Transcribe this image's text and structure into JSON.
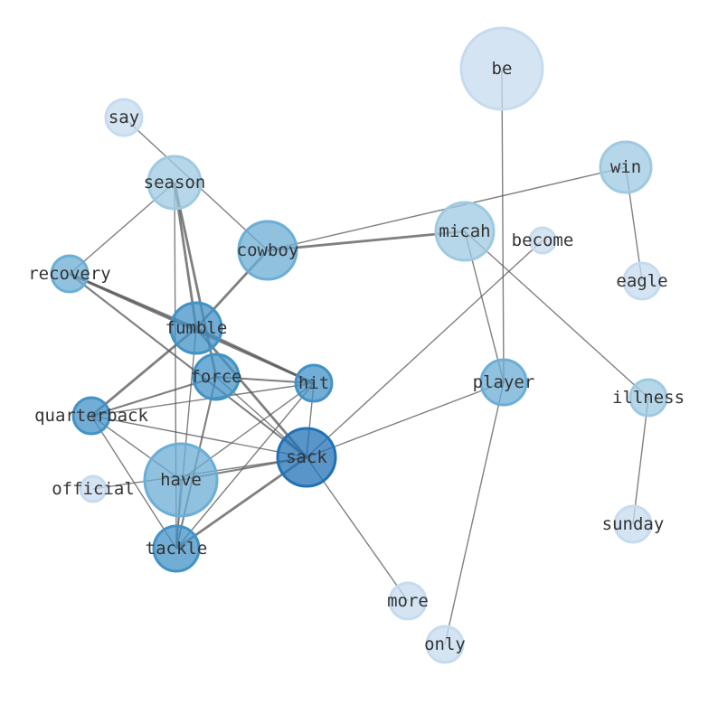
{
  "graph": {
    "node_color_scale": [
      "#c6dbef",
      "#9ecae1",
      "#6baed6",
      "#4292c6",
      "#2171b5"
    ],
    "edge_color": "#555555",
    "nodes": [
      {
        "id": "be",
        "size": 5,
        "shade": 0
      },
      {
        "id": "say",
        "size": 1,
        "shade": 0
      },
      {
        "id": "season",
        "size": 3,
        "shade": 1
      },
      {
        "id": "win",
        "size": 3,
        "shade": 1
      },
      {
        "id": "cowboy",
        "size": 3.5,
        "shade": 2
      },
      {
        "id": "micah",
        "size": 3.5,
        "shade": 1
      },
      {
        "id": "become",
        "size": 0.5,
        "shade": 0
      },
      {
        "id": "recovery",
        "size": 1.5,
        "shade": 2
      },
      {
        "id": "eagle",
        "size": 1,
        "shade": 0
      },
      {
        "id": "fumble",
        "size": 3,
        "shade": 3
      },
      {
        "id": "force",
        "size": 2.5,
        "shade": 3
      },
      {
        "id": "hit",
        "size": 1.5,
        "shade": 3
      },
      {
        "id": "player",
        "size": 2.5,
        "shade": 2
      },
      {
        "id": "illness",
        "size": 1,
        "shade": 1
      },
      {
        "id": "quarterback",
        "size": 1.5,
        "shade": 3
      },
      {
        "id": "sack",
        "size": 3.5,
        "shade": 4
      },
      {
        "id": "have",
        "size": 4.5,
        "shade": 2
      },
      {
        "id": "official",
        "size": 0.5,
        "shade": 0
      },
      {
        "id": "tackle",
        "size": 2.5,
        "shade": 3
      },
      {
        "id": "sunday",
        "size": 1,
        "shade": 0
      },
      {
        "id": "more",
        "size": 1,
        "shade": 0
      },
      {
        "id": "only",
        "size": 1,
        "shade": 0
      }
    ],
    "edges": [
      [
        "say",
        "cowboy",
        1
      ],
      [
        "season",
        "recovery",
        1
      ],
      [
        "season",
        "fumble",
        2
      ],
      [
        "season",
        "force",
        2
      ],
      [
        "season",
        "tackle",
        1
      ],
      [
        "cowboy",
        "micah",
        2
      ],
      [
        "cowboy",
        "win",
        1
      ],
      [
        "cowboy",
        "fumble",
        2
      ],
      [
        "recovery",
        "fumble",
        2
      ],
      [
        "recovery",
        "hit",
        2
      ],
      [
        "recovery",
        "sack",
        1.5
      ],
      [
        "fumble",
        "hit",
        2
      ],
      [
        "fumble",
        "sack",
        2
      ],
      [
        "fumble",
        "tackle",
        1
      ],
      [
        "fumble",
        "quarterback",
        2
      ],
      [
        "force",
        "hit",
        1.5
      ],
      [
        "force",
        "quarterback",
        1.5
      ],
      [
        "force",
        "tackle",
        1.5
      ],
      [
        "force",
        "sack",
        1
      ],
      [
        "hit",
        "quarterback",
        1
      ],
      [
        "hit",
        "have",
        1
      ],
      [
        "hit",
        "tackle",
        1
      ],
      [
        "hit",
        "sack",
        1
      ],
      [
        "quarterback",
        "sack",
        1
      ],
      [
        "quarterback",
        "have",
        1
      ],
      [
        "quarterback",
        "tackle",
        1
      ],
      [
        "have",
        "sack",
        1.5
      ],
      [
        "official",
        "sack",
        1
      ],
      [
        "have",
        "tackle",
        1
      ],
      [
        "tackle",
        "sack",
        2
      ],
      [
        "sack",
        "become",
        1
      ],
      [
        "sack",
        "player",
        1
      ],
      [
        "sack",
        "more",
        1
      ],
      [
        "micah",
        "player",
        1
      ],
      [
        "micah",
        "illness",
        1
      ],
      [
        "be",
        "player",
        1
      ],
      [
        "win",
        "eagle",
        1
      ],
      [
        "illness",
        "sunday",
        1
      ],
      [
        "player",
        "only",
        1
      ]
    ]
  }
}
